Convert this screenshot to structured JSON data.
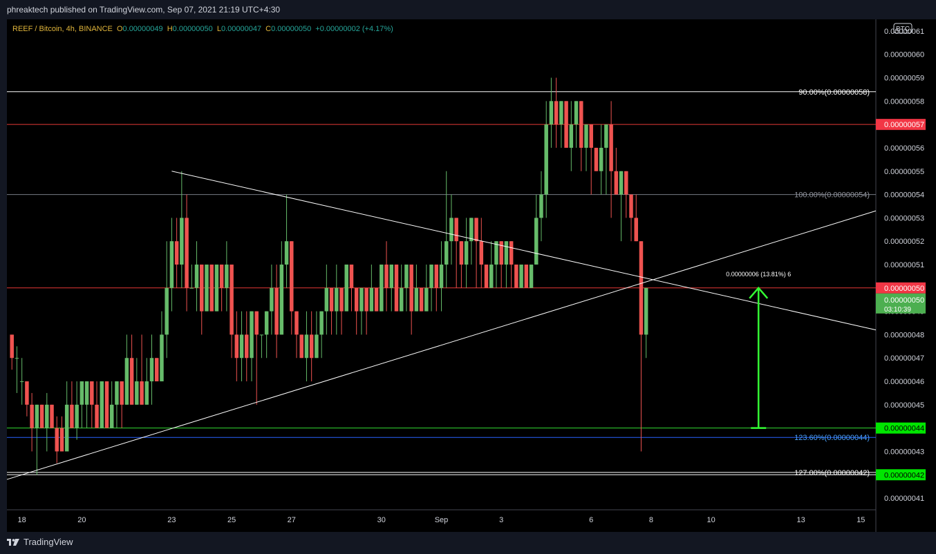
{
  "header": {
    "published_line": "phreaktech published on TradingView.com, Sep 07, 2021 21:19 UTC+4:30"
  },
  "legend": {
    "symbol": "REEF / Bitcoin, 4h, BINANCE",
    "o_label": "O",
    "o_value": "0.00000049",
    "h_label": "H",
    "h_value": "0.00000050",
    "l_label": "L",
    "l_value": "0.00000047",
    "c_label": "C",
    "c_value": "0.00000050",
    "change": "+0.00000002 (+4.17%)"
  },
  "footer": {
    "brand": "TradingView"
  },
  "colors": {
    "background": "#000000",
    "up": "#66bb6a",
    "down": "#ef5350",
    "axis_text": "#d1d4dc",
    "legend_value": "#e0b53b",
    "legend_change": "#26a69a"
  },
  "chart_data": {
    "type": "candlestick",
    "currency_badge": "BTC",
    "ylim": [
      4.05e-07,
      6.15e-08
    ],
    "y_ticks": [
      "0.00000041",
      "0.00000042",
      "0.00000043",
      "0.00000044",
      "0.00000045",
      "0.00000046",
      "0.00000047",
      "0.00000048",
      "0.00000049",
      "0.00000050",
      "0.00000051",
      "0.00000052",
      "0.00000053",
      "0.00000054",
      "0.00000055",
      "0.00000056",
      "0.00000057",
      "0.00000058",
      "0.00000059",
      "0.00000060",
      "0.00000061"
    ],
    "x_ticks": [
      {
        "label": "18",
        "bar": 3
      },
      {
        "label": "20",
        "bar": 15
      },
      {
        "label": "23",
        "bar": 33
      },
      {
        "label": "25",
        "bar": 45
      },
      {
        "label": "27",
        "bar": 57
      },
      {
        "label": "30",
        "bar": 75
      },
      {
        "label": "Sep",
        "bar": 87
      },
      {
        "label": "3",
        "bar": 99
      },
      {
        "label": "6",
        "bar": 117
      },
      {
        "label": "8",
        "bar": 129
      },
      {
        "label": "10",
        "bar": 141
      },
      {
        "label": "13",
        "bar": 159
      },
      {
        "label": "15",
        "bar": 171
      }
    ],
    "bar_range": [
      0,
      174
    ],
    "candles": [
      [
        48,
        47,
        48,
        46.5
      ],
      [
        47,
        47,
        47.5,
        45.5
      ],
      [
        46,
        46,
        47,
        45
      ],
      [
        46,
        45,
        46,
        44.5
      ],
      [
        45,
        44,
        45.5,
        43
      ],
      [
        44,
        45,
        45,
        42
      ],
      [
        45,
        44,
        45,
        44
      ],
      [
        44,
        45,
        45.5,
        43
      ],
      [
        45,
        44,
        45,
        44
      ],
      [
        44,
        43,
        44.5,
        42.5
      ],
      [
        44,
        43,
        44.5,
        43
      ],
      [
        43,
        45,
        46,
        43
      ],
      [
        45,
        44,
        46,
        44
      ],
      [
        44,
        45,
        46,
        43.5
      ],
      [
        45,
        46,
        46,
        44
      ],
      [
        45,
        46,
        46,
        44
      ],
      [
        46,
        45,
        46,
        44
      ],
      [
        45,
        44,
        46,
        44
      ],
      [
        44,
        46,
        46,
        44
      ],
      [
        46,
        44,
        46,
        44
      ],
      [
        44,
        45,
        46,
        44
      ],
      [
        45,
        46,
        46,
        44
      ],
      [
        46,
        45,
        46,
        44
      ],
      [
        45,
        47,
        48,
        45
      ],
      [
        47,
        45,
        48,
        45
      ],
      [
        45,
        46,
        47,
        45
      ],
      [
        46,
        45,
        48,
        45
      ],
      [
        45,
        46,
        47,
        45
      ],
      [
        46,
        47,
        48,
        45
      ],
      [
        47,
        46,
        47,
        46
      ],
      [
        46,
        48,
        49,
        46
      ],
      [
        48,
        50,
        52,
        47
      ],
      [
        50,
        52,
        53,
        49
      ],
      [
        52,
        51,
        53,
        50
      ],
      [
        51,
        53,
        55,
        50
      ],
      [
        53,
        50,
        54,
        49
      ],
      [
        50,
        50,
        51,
        50
      ],
      [
        50,
        51,
        52,
        49
      ],
      [
        51,
        49,
        51,
        48
      ],
      [
        49,
        51,
        51,
        49
      ],
      [
        51,
        49,
        51,
        49
      ],
      [
        49,
        51,
        51,
        49
      ],
      [
        51,
        50,
        51,
        49
      ],
      [
        50,
        51,
        52,
        49
      ],
      [
        51,
        48,
        51,
        47
      ],
      [
        48,
        47,
        49,
        46
      ],
      [
        47,
        48,
        49,
        46
      ],
      [
        48,
        47,
        49,
        46
      ],
      [
        47,
        49,
        49,
        46
      ],
      [
        49,
        48,
        49,
        45
      ],
      [
        48,
        48,
        48,
        47
      ],
      [
        48,
        49,
        49,
        47
      ],
      [
        49,
        50,
        51,
        48
      ],
      [
        50,
        48,
        51,
        47
      ],
      [
        48,
        51,
        52,
        48
      ],
      [
        51,
        52,
        54,
        50
      ],
      [
        52,
        49,
        52,
        48
      ],
      [
        49,
        48,
        49,
        47
      ],
      [
        48,
        47,
        48,
        47
      ],
      [
        47,
        48,
        49,
        46
      ],
      [
        48,
        47,
        49,
        46
      ],
      [
        47,
        48,
        49,
        47
      ],
      [
        48,
        49,
        49,
        47
      ],
      [
        49,
        50,
        51,
        48
      ],
      [
        50,
        49,
        50,
        48
      ],
      [
        49,
        50,
        51,
        48
      ],
      [
        50,
        49,
        50,
        48
      ],
      [
        49,
        51,
        51,
        49
      ],
      [
        51,
        50,
        51,
        49
      ],
      [
        50,
        49,
        50,
        48
      ],
      [
        49,
        50,
        50,
        48
      ],
      [
        50,
        49,
        50,
        48
      ],
      [
        49,
        50,
        51,
        49
      ],
      [
        50,
        49,
        50,
        49
      ],
      [
        49,
        51,
        51,
        49
      ],
      [
        51,
        50,
        52,
        49
      ],
      [
        50,
        51,
        51,
        49
      ],
      [
        51,
        49,
        51,
        49
      ],
      [
        49,
        50,
        51,
        49
      ],
      [
        50,
        51,
        51,
        49
      ],
      [
        51,
        49,
        51,
        48
      ],
      [
        49,
        50,
        51,
        49
      ],
      [
        50,
        49,
        50,
        49
      ],
      [
        49,
        50,
        51,
        49
      ],
      [
        50,
        51,
        51,
        49
      ],
      [
        51,
        50,
        51,
        49
      ],
      [
        50,
        51,
        52,
        49
      ],
      [
        51,
        52,
        55,
        50
      ],
      [
        52,
        53,
        54,
        51
      ],
      [
        53,
        52,
        53,
        50
      ],
      [
        52,
        51,
        52,
        50
      ],
      [
        51,
        52,
        53,
        50
      ],
      [
        52,
        53,
        53,
        51
      ],
      [
        53,
        52,
        53,
        50
      ],
      [
        52,
        51,
        53,
        50
      ],
      [
        51,
        50,
        51,
        50
      ],
      [
        50,
        51,
        52,
        50
      ],
      [
        51,
        52,
        52,
        50
      ],
      [
        52,
        51,
        52,
        50
      ],
      [
        51,
        52,
        52,
        50
      ],
      [
        52,
        51,
        52,
        50
      ],
      [
        51,
        50,
        51,
        50
      ],
      [
        50,
        51,
        51,
        50
      ],
      [
        51,
        50,
        51,
        50
      ],
      [
        50,
        51,
        51,
        50
      ],
      [
        51,
        53,
        54,
        51
      ],
      [
        53,
        54,
        55,
        52
      ],
      [
        54,
        57,
        58,
        53
      ],
      [
        57,
        58,
        59,
        56
      ],
      [
        58,
        57,
        59,
        56
      ],
      [
        57,
        58,
        58,
        56
      ],
      [
        58,
        56,
        58,
        56
      ],
      [
        56,
        57,
        58,
        55
      ],
      [
        57,
        58,
        58,
        56
      ],
      [
        58,
        56,
        58,
        55
      ],
      [
        56,
        57,
        57,
        55
      ],
      [
        57,
        56,
        57,
        54
      ],
      [
        56,
        55,
        56,
        55
      ],
      [
        55,
        56,
        57,
        54
      ],
      [
        56,
        57,
        57,
        54
      ],
      [
        57,
        55,
        58,
        53
      ],
      [
        55,
        54,
        56,
        54
      ],
      [
        54,
        55,
        55,
        52
      ],
      [
        55,
        54,
        55,
        53
      ],
      [
        54,
        53,
        54,
        52
      ],
      [
        53,
        52,
        54,
        52
      ],
      [
        52,
        48,
        52,
        43
      ],
      [
        48,
        50,
        50,
        47
      ]
    ],
    "candle_bar_offset": 1,
    "drawings": {
      "horizontal_lines": [
        {
          "price": 58.4,
          "color": "#ffffff",
          "label": "90.00%(0.00000058)"
        },
        {
          "price": 57.0,
          "color": "#e53935",
          "badge": "0.00000057"
        },
        {
          "price": 54.0,
          "color": "#787b86",
          "label": "100.00%(0.00000054)"
        },
        {
          "price": 50.0,
          "color": "#e53935",
          "badge": "0.00000050"
        },
        {
          "price": 44.0,
          "color": "#33dd33",
          "badge": "0.00000044"
        },
        {
          "price": 43.6,
          "color": "#2962ff",
          "label": "123.60%(0.00000044)"
        },
        {
          "price": 42.1,
          "color": "#ffffff",
          "label": "127.00%(0.00000042)"
        },
        {
          "price": 42.0,
          "color": "#ffffff",
          "badge": "0.00000042"
        }
      ],
      "trendlines": [
        {
          "from": [
            33,
            55.0
          ],
          "to": [
            174,
            48.2
          ],
          "color": "#ffffff"
        },
        {
          "from": [
            0,
            41.8
          ],
          "to": [
            174,
            53.3
          ],
          "color": "#ffffff"
        }
      ],
      "measure": {
        "x": 150.5,
        "from": 44.0,
        "to": 50.0,
        "color": "#33ff33",
        "label": "0.00000006 (13.81%) 6"
      },
      "last_price": {
        "price": "0.00000050",
        "countdown": "03:10:39"
      }
    }
  }
}
